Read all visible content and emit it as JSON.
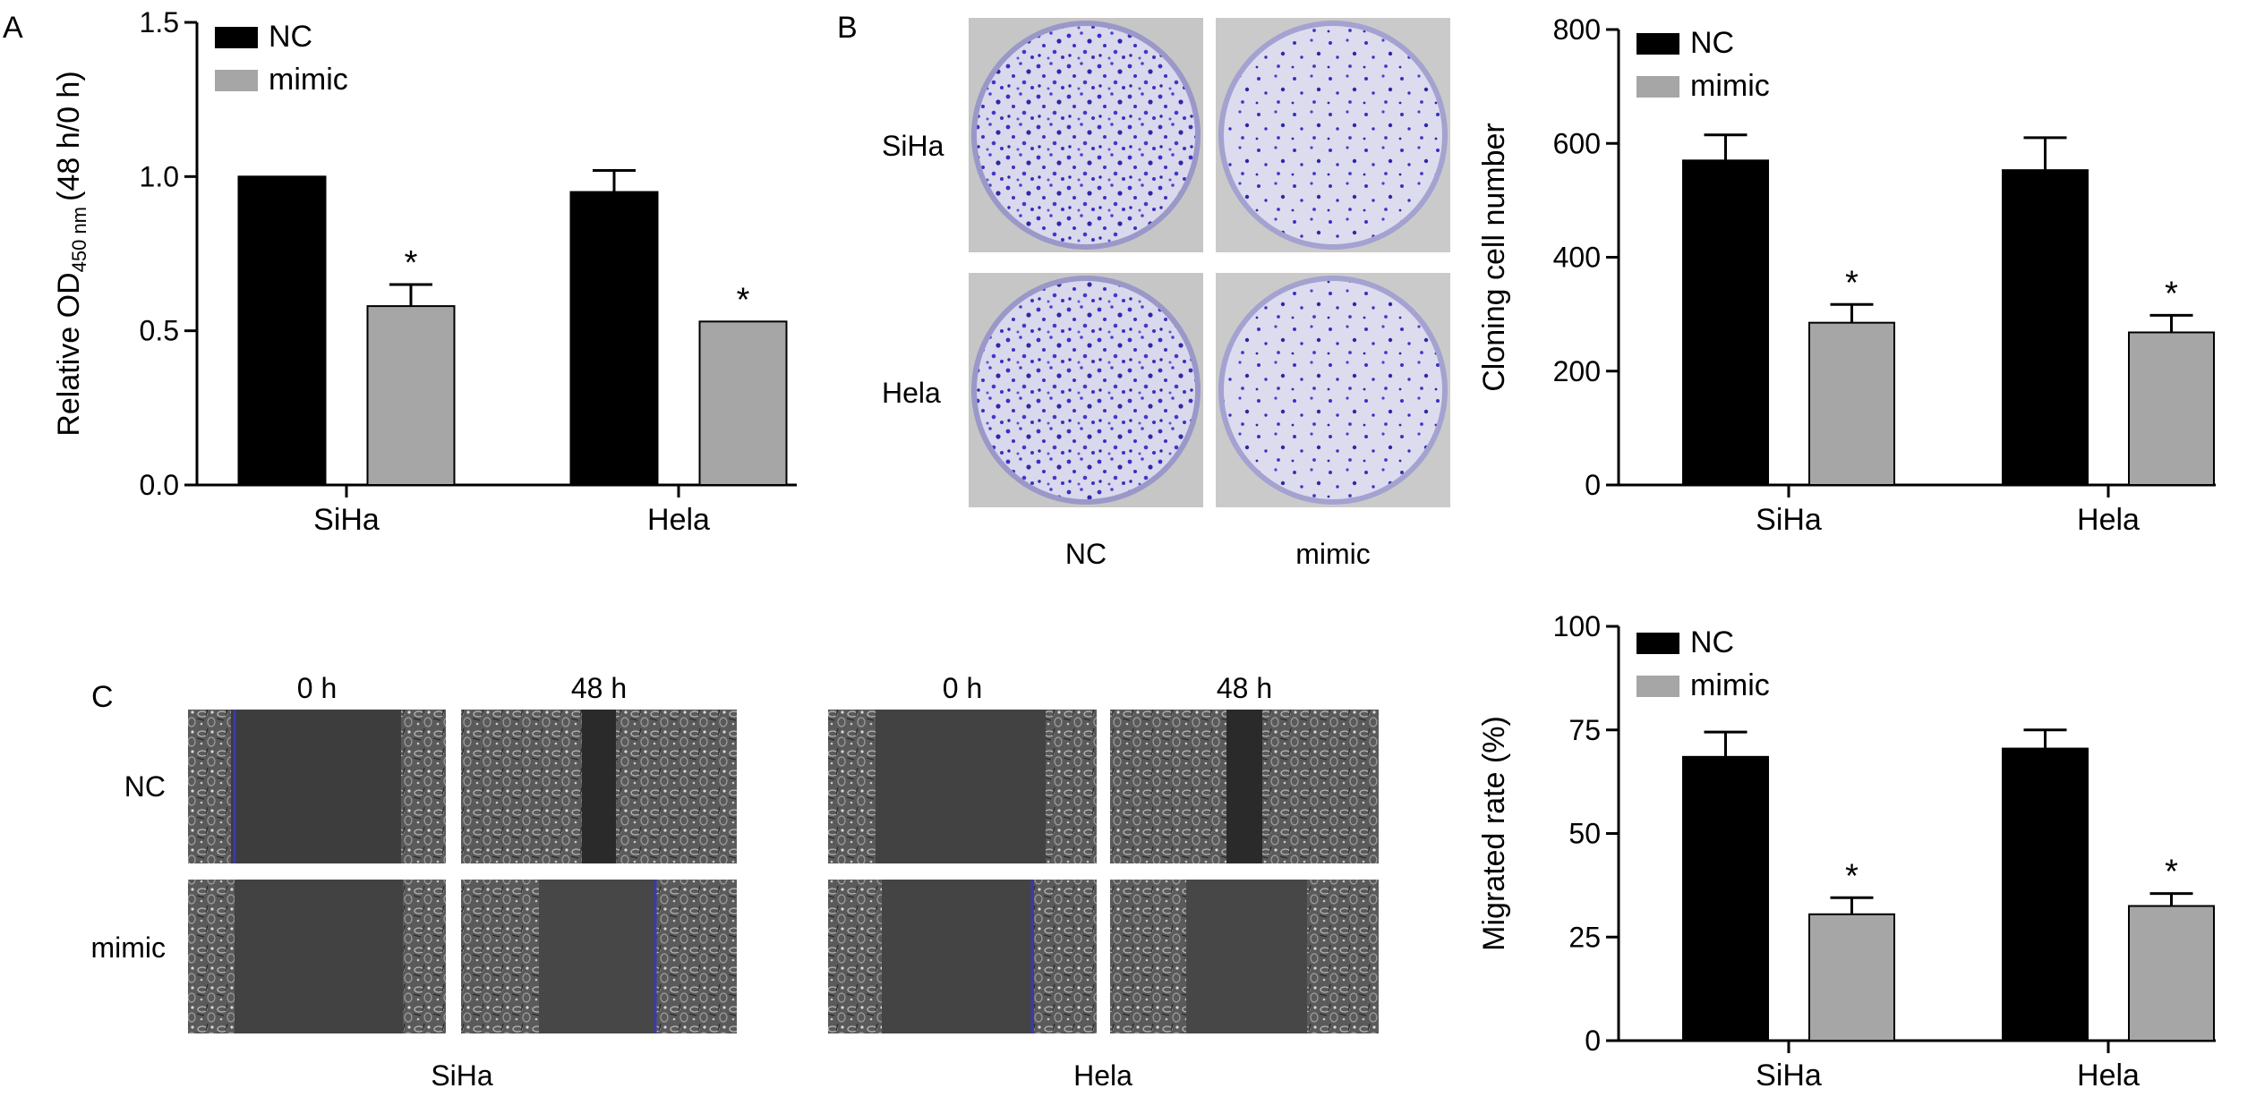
{
  "panels": {
    "a": "A",
    "b": "B",
    "c": "C"
  },
  "chart_data": [
    {
      "id": "A",
      "type": "bar",
      "categories": [
        "SiHa",
        "Hela"
      ],
      "series": [
        {
          "name": "NC",
          "values": [
            1.0,
            0.95
          ],
          "errors": [
            0.0,
            0.07
          ],
          "color": "#000000"
        },
        {
          "name": "mimic",
          "values": [
            0.58,
            0.53
          ],
          "errors": [
            0.07,
            0.0
          ],
          "color": "#a6a6a6"
        }
      ],
      "significance": [
        [
          "",
          "*"
        ],
        [
          "",
          "*"
        ]
      ],
      "ylabel": "Relative OD",
      "ylabel_sub": "450 nm",
      "ylabel_suffix": "(48 h/0 h)",
      "ylim": [
        0,
        1.5
      ],
      "yticks": [
        "0.0",
        "0.5",
        "1.0",
        "1.5"
      ],
      "ytick_values": [
        0,
        0.5,
        1.0,
        1.5
      ],
      "grid": false,
      "legend": "top-left"
    },
    {
      "id": "B",
      "type": "bar",
      "categories": [
        "SiHa",
        "Hela"
      ],
      "series": [
        {
          "name": "NC",
          "values": [
            570,
            553
          ],
          "errors": [
            45,
            57
          ],
          "color": "#000000"
        },
        {
          "name": "mimic",
          "values": [
            285,
            268
          ],
          "errors": [
            32,
            30
          ],
          "color": "#a6a6a6"
        }
      ],
      "significance": [
        [
          "",
          "*"
        ],
        [
          "",
          "*"
        ]
      ],
      "ylabel": "Cloning cell number",
      "ylim": [
        0,
        800
      ],
      "yticks": [
        "0",
        "200",
        "400",
        "600",
        "800"
      ],
      "ytick_values": [
        0,
        200,
        400,
        600,
        800
      ],
      "grid": false,
      "legend": "top-left"
    },
    {
      "id": "C",
      "type": "bar",
      "categories": [
        "SiHa",
        "Hela"
      ],
      "series": [
        {
          "name": "NC",
          "values": [
            68.5,
            70.5
          ],
          "errors": [
            6,
            4.5
          ],
          "color": "#000000"
        },
        {
          "name": "mimic",
          "values": [
            30.5,
            32.5
          ],
          "errors": [
            4,
            3
          ],
          "color": "#a6a6a6"
        }
      ],
      "significance": [
        [
          "",
          "*"
        ],
        [
          "",
          "*"
        ]
      ],
      "ylabel": "Migrated rate (%)",
      "ylim": [
        0,
        100
      ],
      "yticks": [
        "0",
        "25",
        "50",
        "75",
        "100"
      ],
      "ytick_values": [
        0,
        25,
        50,
        75,
        100
      ],
      "grid": false,
      "legend": "top-left"
    }
  ],
  "colony": {
    "row_labels": [
      "SiHa",
      "Hela"
    ],
    "col_labels": [
      "NC",
      "mimic"
    ]
  },
  "wound": {
    "time_labels": [
      "0 h",
      "48 h"
    ],
    "row_labels": [
      "NC",
      "mimic"
    ],
    "cell_lines": [
      "SiHa",
      "Hela"
    ]
  },
  "colors": {
    "nc": "#000000",
    "mimic": "#a6a6a6",
    "colony_stain": "#3a2fc4",
    "colony_bg": "#cfcfe6",
    "wound_bg": "#3c3c3c"
  }
}
